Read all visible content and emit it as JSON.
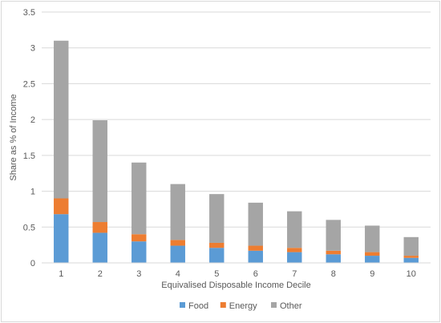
{
  "chart_data": {
    "type": "bar",
    "stacked": true,
    "categories": [
      "1",
      "2",
      "3",
      "4",
      "5",
      "6",
      "7",
      "8",
      "9",
      "10"
    ],
    "series": [
      {
        "name": "Food",
        "color": "#5b9bd5",
        "values": [
          0.68,
          0.42,
          0.3,
          0.24,
          0.21,
          0.17,
          0.15,
          0.12,
          0.1,
          0.07
        ]
      },
      {
        "name": "Energy",
        "color": "#ed7d31",
        "values": [
          0.22,
          0.15,
          0.1,
          0.08,
          0.07,
          0.07,
          0.06,
          0.05,
          0.05,
          0.03
        ]
      },
      {
        "name": "Other",
        "color": "#a5a5a5",
        "values": [
          2.2,
          1.42,
          1.0,
          0.78,
          0.68,
          0.6,
          0.51,
          0.43,
          0.37,
          0.26
        ]
      }
    ],
    "title": "",
    "xlabel": "Equivalised Disposable Income Decile",
    "ylabel": "Share as % of Income",
    "ylim": [
      0,
      3.5
    ],
    "yticks": [
      "0",
      "0.5",
      "1",
      "1.5",
      "2",
      "2.5",
      "3",
      "3.5"
    ],
    "grid": true,
    "legend": "bottom"
  }
}
